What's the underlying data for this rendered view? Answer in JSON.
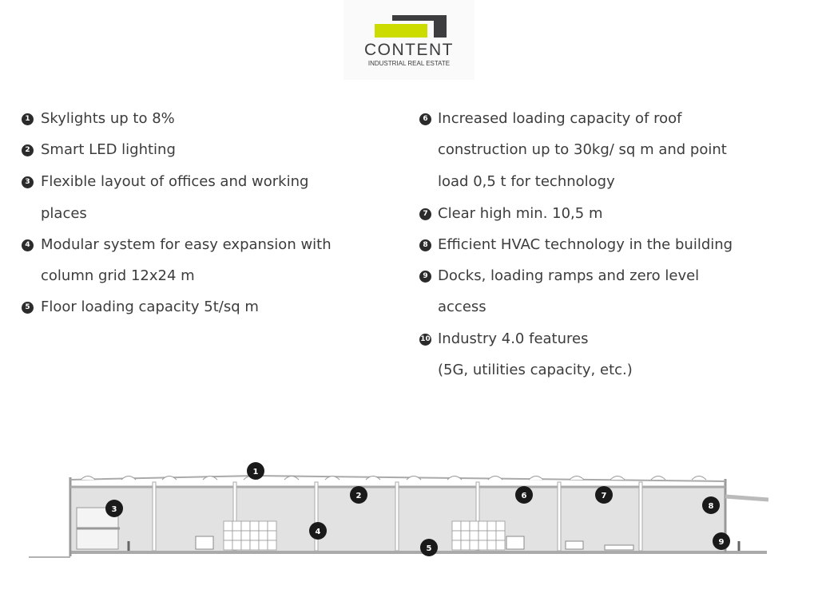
{
  "logo": {
    "name": "CONTENT",
    "tagline": "INDUSTRIAL REAL ESTATE",
    "colors": {
      "lime": "#cddc00",
      "dark": "#3d3d3f"
    }
  },
  "features_left": [
    {
      "n": "1",
      "lines": [
        "Skylights up to 8%"
      ]
    },
    {
      "n": "2",
      "lines": [
        "Smart LED lighting"
      ]
    },
    {
      "n": "3",
      "lines": [
        "Flexible layout of offices and working",
        "places"
      ]
    },
    {
      "n": "4",
      "lines": [
        "Modular system for easy expansion with",
        "column grid 12x24 m"
      ]
    },
    {
      "n": "5",
      "lines": [
        "Floor loading capacity 5t/sq m"
      ]
    }
  ],
  "features_right": [
    {
      "n": "6",
      "lines": [
        "Increased loading capacity of roof",
        "construction up to 30kg/ sq  m and point",
        "load 0,5 t for technology"
      ]
    },
    {
      "n": "7",
      "lines": [
        "Clear high min. 10,5 m"
      ]
    },
    {
      "n": "8",
      "lines": [
        "Efficient HVAC technology in the building"
      ]
    },
    {
      "n": "9",
      "lines": [
        "Docks, loading ramps and zero level",
        "access"
      ]
    },
    {
      "n": "10",
      "lines": [
        "Industry 4.0 features",
        "(5G, utilities capacity, etc.)"
      ]
    }
  ],
  "diagram_markers": [
    "1",
    "2",
    "3",
    "4",
    "5",
    "6",
    "7",
    "8",
    "9"
  ]
}
